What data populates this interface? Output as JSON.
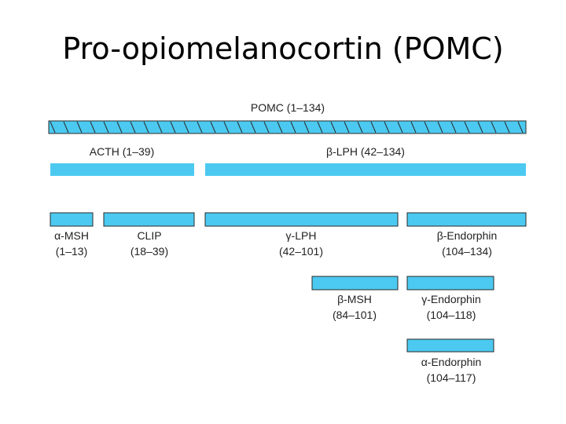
{
  "title": "Pro-opiomelanocortin (POMC)",
  "colors": {
    "bar": "#4cc9f0",
    "stroke": "#2a2a2a"
  },
  "segments": [
    {
      "id": "pomc",
      "name": "POMC",
      "range": "(1–134)",
      "label": "POMC (1–134)"
    },
    {
      "id": "acth",
      "name": "ACTH",
      "range": "(1–39)",
      "label": "ACTH (1–39)"
    },
    {
      "id": "b-lph",
      "name": "β-LPH",
      "range": "(42–134)",
      "label": "β-LPH (42–134)"
    },
    {
      "id": "a-msh",
      "name": "α-MSH",
      "range": "(1–13)"
    },
    {
      "id": "clip",
      "name": "CLIP",
      "range": "(18–39)"
    },
    {
      "id": "g-lph",
      "name": "γ-LPH",
      "range": "(42–101)"
    },
    {
      "id": "b-endorphin",
      "name": "β-Endorphin",
      "range": "(104–134)"
    },
    {
      "id": "b-msh",
      "name": "β-MSH",
      "range": "(84–101)"
    },
    {
      "id": "g-endorphin",
      "name": "γ-Endorphin",
      "range": "(104–118)"
    },
    {
      "id": "a-endorphin",
      "name": "α-Endorphin",
      "range": "(104–117)"
    }
  ]
}
